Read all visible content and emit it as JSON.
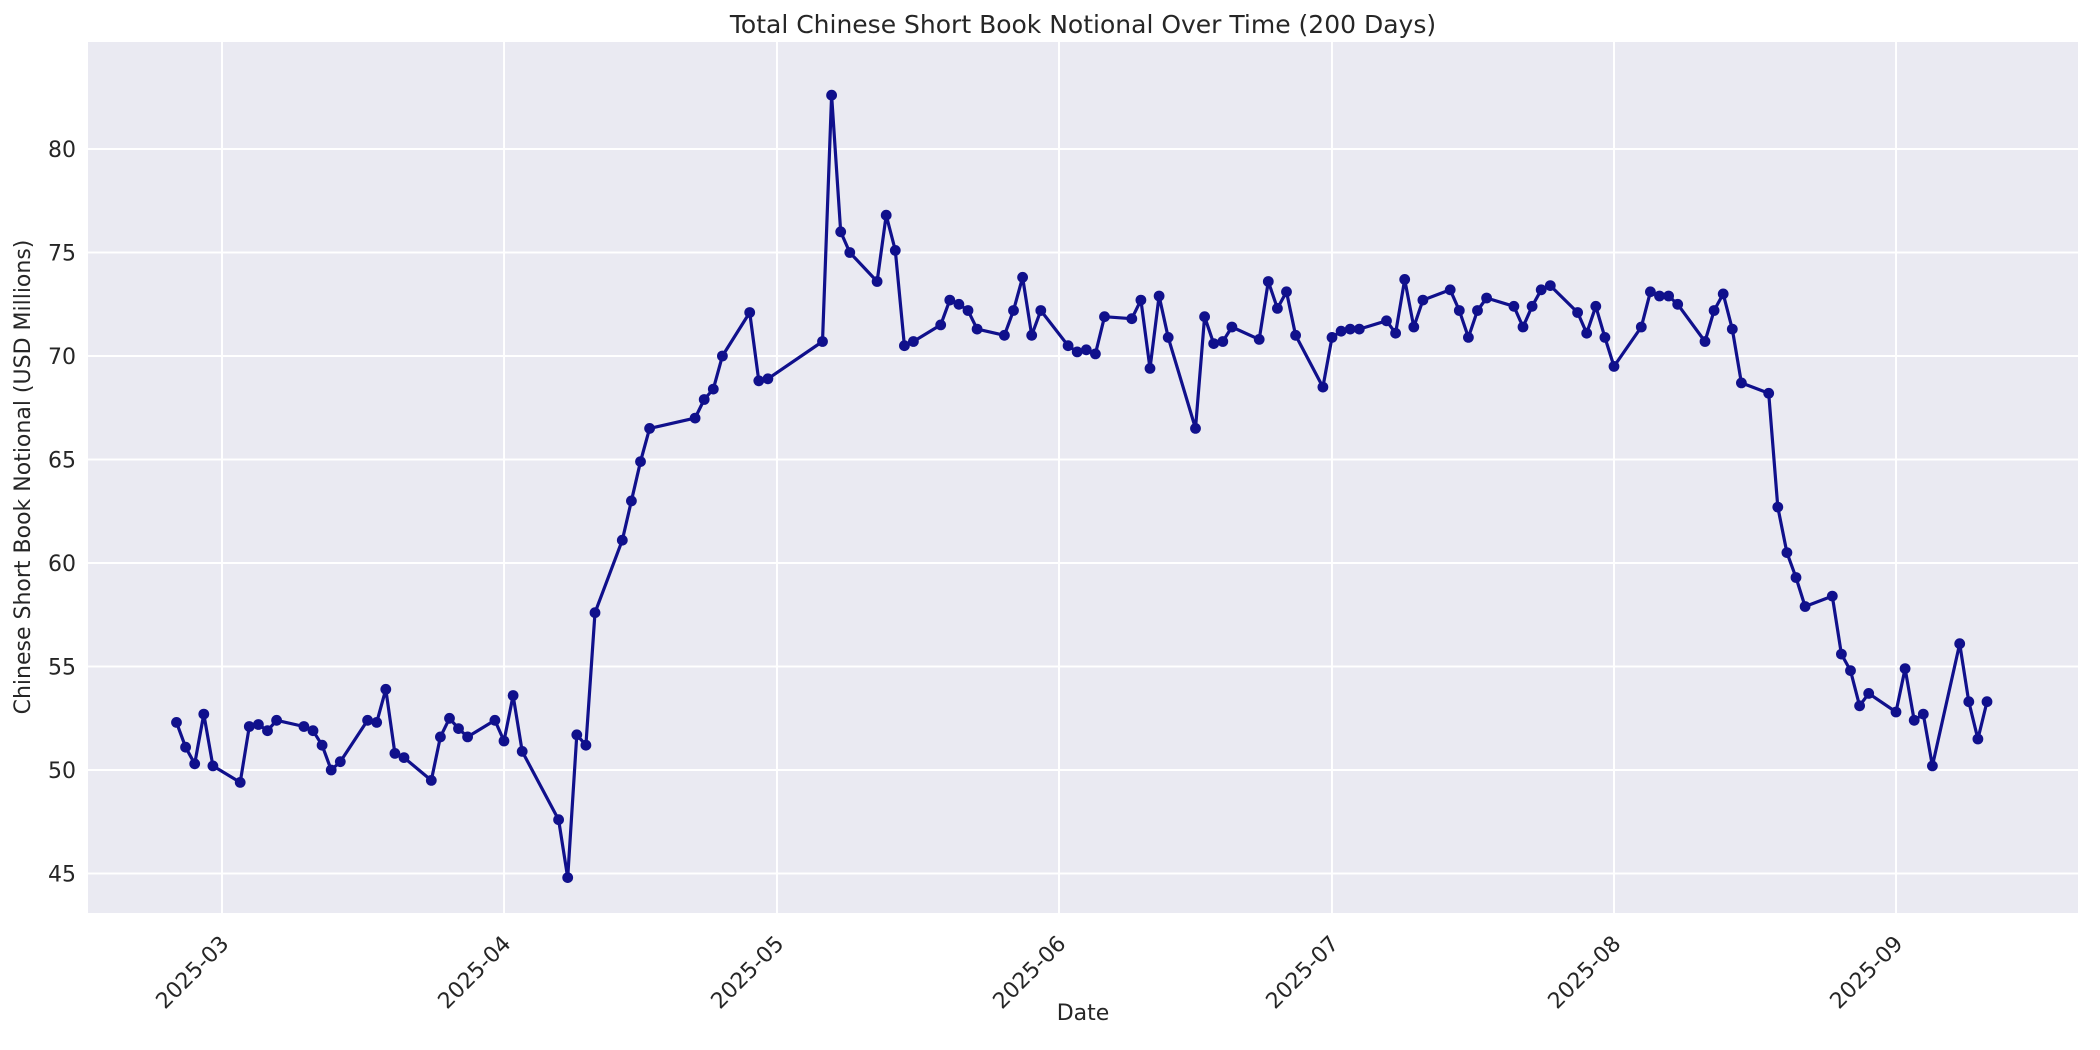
{
  "chart_data": {
    "type": "line",
    "title": "Total Chinese Short Book Notional Over Time (200 Days)",
    "xlabel": "Date",
    "ylabel": "Chinese Short Book Notional (USD Millions)",
    "x_tick_labels": [
      "2025-03",
      "2025-04",
      "2025-05",
      "2025-06",
      "2025-07",
      "2025-08",
      "2025-09"
    ],
    "y_ticks": [
      45,
      50,
      55,
      60,
      65,
      70,
      75,
      80
    ],
    "ylim": [
      43.1,
      85.2
    ],
    "xlim": [
      "2025-02-14",
      "2025-09-21"
    ],
    "grid": true,
    "legend": "none",
    "style": {
      "axes_background": "#eaeaf2",
      "grid_color": "#ffffff",
      "line_color": "#10108c",
      "marker": "circle",
      "text_color": "#262626",
      "figure_background": "#ffffff"
    },
    "series": [
      {
        "name": "Total Chinese Short Book Notional (USD Millions)",
        "points": [
          [
            "2025-02-24",
            52.3
          ],
          [
            "2025-02-25",
            51.1
          ],
          [
            "2025-02-26",
            50.3
          ],
          [
            "2025-02-27",
            52.7
          ],
          [
            "2025-02-28",
            50.2
          ],
          [
            "2025-03-03",
            49.4
          ],
          [
            "2025-03-04",
            52.1
          ],
          [
            "2025-03-05",
            52.2
          ],
          [
            "2025-03-06",
            51.9
          ],
          [
            "2025-03-07",
            52.4
          ],
          [
            "2025-03-10",
            52.1
          ],
          [
            "2025-03-11",
            51.9
          ],
          [
            "2025-03-12",
            51.2
          ],
          [
            "2025-03-13",
            50.0
          ],
          [
            "2025-03-14",
            50.4
          ],
          [
            "2025-03-17",
            52.4
          ],
          [
            "2025-03-18",
            52.3
          ],
          [
            "2025-03-19",
            53.9
          ],
          [
            "2025-03-20",
            50.8
          ],
          [
            "2025-03-21",
            50.6
          ],
          [
            "2025-03-24",
            49.5
          ],
          [
            "2025-03-25",
            51.6
          ],
          [
            "2025-03-26",
            52.5
          ],
          [
            "2025-03-27",
            52.0
          ],
          [
            "2025-03-28",
            51.6
          ],
          [
            "2025-03-31",
            52.4
          ],
          [
            "2025-04-01",
            51.4
          ],
          [
            "2025-04-02",
            53.6
          ],
          [
            "2025-04-03",
            50.9
          ],
          [
            "2025-04-07",
            47.6
          ],
          [
            "2025-04-08",
            44.8
          ],
          [
            "2025-04-09",
            51.7
          ],
          [
            "2025-04-10",
            51.2
          ],
          [
            "2025-04-11",
            57.6
          ],
          [
            "2025-04-14",
            61.1
          ],
          [
            "2025-04-15",
            63.0
          ],
          [
            "2025-04-16",
            64.9
          ],
          [
            "2025-04-17",
            66.5
          ],
          [
            "2025-04-22",
            67.0
          ],
          [
            "2025-04-23",
            67.9
          ],
          [
            "2025-04-24",
            68.4
          ],
          [
            "2025-04-25",
            70.0
          ],
          [
            "2025-04-28",
            72.1
          ],
          [
            "2025-04-29",
            68.8
          ],
          [
            "2025-04-30",
            68.9
          ],
          [
            "2025-05-06",
            70.7
          ],
          [
            "2025-05-07",
            82.6
          ],
          [
            "2025-05-08",
            76.0
          ],
          [
            "2025-05-09",
            75.0
          ],
          [
            "2025-05-12",
            73.6
          ],
          [
            "2025-05-13",
            76.8
          ],
          [
            "2025-05-14",
            75.1
          ],
          [
            "2025-05-15",
            70.5
          ],
          [
            "2025-05-16",
            70.7
          ],
          [
            "2025-05-19",
            71.5
          ],
          [
            "2025-05-20",
            72.7
          ],
          [
            "2025-05-21",
            72.5
          ],
          [
            "2025-05-22",
            72.2
          ],
          [
            "2025-05-23",
            71.3
          ],
          [
            "2025-05-26",
            71.0
          ],
          [
            "2025-05-27",
            72.2
          ],
          [
            "2025-05-28",
            73.8
          ],
          [
            "2025-05-29",
            71.0
          ],
          [
            "2025-05-30",
            72.2
          ],
          [
            "2025-06-02",
            70.5
          ],
          [
            "2025-06-03",
            70.2
          ],
          [
            "2025-06-04",
            70.3
          ],
          [
            "2025-06-05",
            70.1
          ],
          [
            "2025-06-06",
            71.9
          ],
          [
            "2025-06-09",
            71.8
          ],
          [
            "2025-06-10",
            72.7
          ],
          [
            "2025-06-11",
            69.4
          ],
          [
            "2025-06-12",
            72.9
          ],
          [
            "2025-06-13",
            70.9
          ],
          [
            "2025-06-16",
            66.5
          ],
          [
            "2025-06-17",
            71.9
          ],
          [
            "2025-06-18",
            70.6
          ],
          [
            "2025-06-19",
            70.7
          ],
          [
            "2025-06-20",
            71.4
          ],
          [
            "2025-06-23",
            70.8
          ],
          [
            "2025-06-24",
            73.6
          ],
          [
            "2025-06-25",
            72.3
          ],
          [
            "2025-06-26",
            73.1
          ],
          [
            "2025-06-27",
            71.0
          ],
          [
            "2025-06-30",
            68.5
          ],
          [
            "2025-07-01",
            70.9
          ],
          [
            "2025-07-02",
            71.2
          ],
          [
            "2025-07-03",
            71.3
          ],
          [
            "2025-07-04",
            71.3
          ],
          [
            "2025-07-07",
            71.7
          ],
          [
            "2025-07-08",
            71.1
          ],
          [
            "2025-07-09",
            73.7
          ],
          [
            "2025-07-10",
            71.4
          ],
          [
            "2025-07-11",
            72.7
          ],
          [
            "2025-07-14",
            73.2
          ],
          [
            "2025-07-15",
            72.2
          ],
          [
            "2025-07-16",
            70.9
          ],
          [
            "2025-07-17",
            72.2
          ],
          [
            "2025-07-18",
            72.8
          ],
          [
            "2025-07-21",
            72.4
          ],
          [
            "2025-07-22",
            71.4
          ],
          [
            "2025-07-23",
            72.4
          ],
          [
            "2025-07-24",
            73.2
          ],
          [
            "2025-07-25",
            73.4
          ],
          [
            "2025-07-28",
            72.1
          ],
          [
            "2025-07-29",
            71.1
          ],
          [
            "2025-07-30",
            72.4
          ],
          [
            "2025-07-31",
            70.9
          ],
          [
            "2025-08-01",
            69.5
          ],
          [
            "2025-08-04",
            71.4
          ],
          [
            "2025-08-05",
            73.1
          ],
          [
            "2025-08-06",
            72.9
          ],
          [
            "2025-08-07",
            72.9
          ],
          [
            "2025-08-08",
            72.5
          ],
          [
            "2025-08-11",
            70.7
          ],
          [
            "2025-08-12",
            72.2
          ],
          [
            "2025-08-13",
            73.0
          ],
          [
            "2025-08-14",
            71.3
          ],
          [
            "2025-08-15",
            68.7
          ],
          [
            "2025-08-18",
            68.2
          ],
          [
            "2025-08-19",
            62.7
          ],
          [
            "2025-08-20",
            60.5
          ],
          [
            "2025-08-21",
            59.3
          ],
          [
            "2025-08-22",
            57.9
          ],
          [
            "2025-08-25",
            58.4
          ],
          [
            "2025-08-26",
            55.6
          ],
          [
            "2025-08-27",
            54.8
          ],
          [
            "2025-08-28",
            53.1
          ],
          [
            "2025-08-29",
            53.7
          ],
          [
            "2025-09-01",
            52.8
          ],
          [
            "2025-09-02",
            54.9
          ],
          [
            "2025-09-03",
            52.4
          ],
          [
            "2025-09-04",
            52.7
          ],
          [
            "2025-09-05",
            50.2
          ],
          [
            "2025-09-08",
            56.1
          ],
          [
            "2025-09-09",
            53.3
          ],
          [
            "2025-09-10",
            51.5
          ],
          [
            "2025-09-11",
            53.3
          ]
        ]
      }
    ]
  }
}
